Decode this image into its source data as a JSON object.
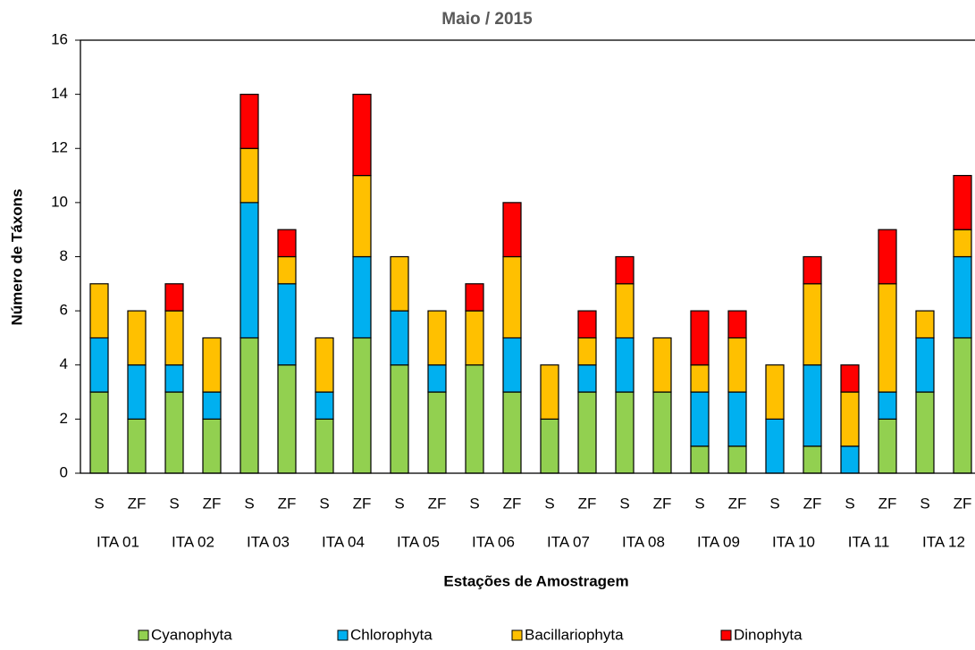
{
  "chart_data": {
    "type": "stacked_bar",
    "title": "Maio / 2015",
    "x_label": "Estações de Amostragem",
    "y_label": "Número de Táxons",
    "categories": [
      "S",
      "ZF",
      "S",
      "ZF",
      "S",
      "ZF",
      "S",
      "ZF",
      "S",
      "ZF",
      "S",
      "ZF",
      "S",
      "ZF",
      "S",
      "ZF",
      "S",
      "ZF",
      "S",
      "ZF",
      "S",
      "ZF",
      "S",
      "ZF"
    ],
    "groups": [
      "ITA 01",
      "ITA 02",
      "ITA 03",
      "ITA 04",
      "ITA 05",
      "ITA 06",
      "ITA 07",
      "ITA 08",
      "ITA 09",
      "ITA 10",
      "ITA 11",
      "ITA 12"
    ],
    "series": [
      {
        "name": "Cyanophyta",
        "color": "#92d050",
        "values": [
          3,
          2,
          3,
          2,
          5,
          4,
          2,
          5,
          4,
          3,
          4,
          3,
          2,
          3,
          3,
          3,
          1,
          1,
          0,
          1,
          0,
          2,
          3,
          5
        ]
      },
      {
        "name": "Chlorophyta",
        "color": "#00b0f0",
        "values": [
          2,
          2,
          1,
          1,
          5,
          3,
          1,
          3,
          2,
          1,
          0,
          2,
          0,
          1,
          2,
          0,
          2,
          2,
          2,
          3,
          1,
          1,
          2,
          3
        ]
      },
      {
        "name": "Bacillariophyta",
        "color": "#ffc000",
        "values": [
          2,
          2,
          2,
          2,
          2,
          1,
          2,
          3,
          2,
          2,
          2,
          3,
          2,
          1,
          2,
          2,
          1,
          2,
          2,
          3,
          2,
          4,
          1,
          1
        ]
      },
      {
        "name": "Dinophyta",
        "color": "#ff0000",
        "values": [
          0,
          0,
          1,
          0,
          2,
          1,
          0,
          3,
          0,
          0,
          1,
          2,
          0,
          1,
          1,
          0,
          2,
          1,
          0,
          1,
          1,
          2,
          0,
          2
        ]
      }
    ],
    "ylim": [
      0,
      16
    ],
    "yticks": [
      0,
      2,
      4,
      6,
      8,
      10,
      12,
      14,
      16
    ],
    "legend": "bottom"
  }
}
